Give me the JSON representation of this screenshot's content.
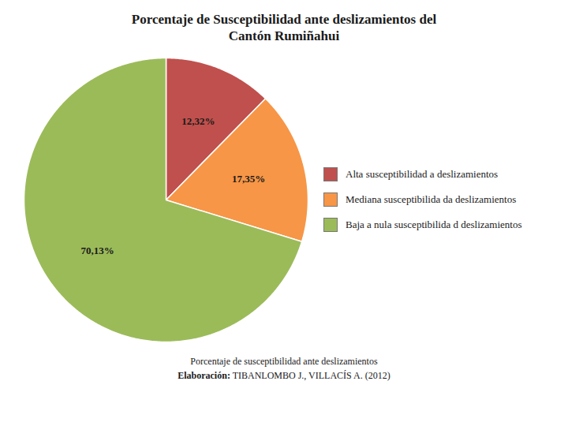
{
  "chart_data": {
    "type": "pie",
    "title": "Porcentaje de Susceptibilidad ante deslizamientos del\nCantón Rumiñahui",
    "categories": [
      "Alta susceptibilidad a deslizamientos",
      "Mediana susceptibilida da deslizamientos",
      "Baja a nula susceptibilida d deslizamientos"
    ],
    "values": [
      12.32,
      17.35,
      70.13
    ],
    "value_labels": [
      "12,32%",
      "17,35%",
      "70,13%"
    ],
    "colors": [
      "#c0504d",
      "#f79646",
      "#9bbb59"
    ],
    "data_labels": true,
    "legend": "right",
    "annotations": [
      "Porcentaje de susceptibilidad ante deslizamientos",
      "Elaboración: TIBANLOMBO J., VILLACÍS A. (2012)"
    ]
  }
}
